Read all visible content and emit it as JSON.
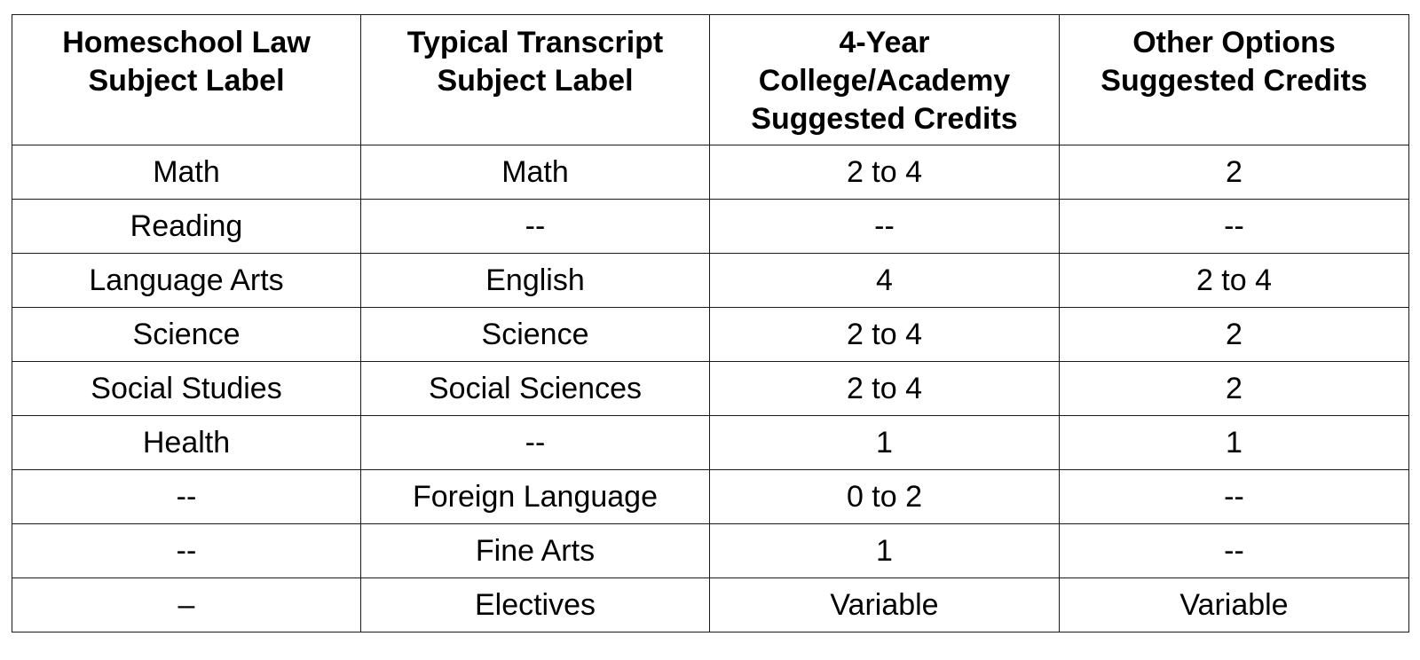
{
  "table": {
    "headers": [
      {
        "line1": "Homeschool Law",
        "line2": "Subject Label",
        "line3": ""
      },
      {
        "line1": "Typical Transcript",
        "line2": "Subject Label",
        "line3": ""
      },
      {
        "line1": "4-Year",
        "line2": "College/Academy",
        "line3": "Suggested Credits"
      },
      {
        "line1": "Other Options",
        "line2": "Suggested Credits",
        "line3": ""
      }
    ],
    "rows": [
      [
        "Math",
        "Math",
        "2 to 4",
        "2"
      ],
      [
        "Reading",
        "--",
        "--",
        "--"
      ],
      [
        "Language Arts",
        "English",
        "4",
        "2 to 4"
      ],
      [
        "Science",
        "Science",
        "2 to 4",
        "2"
      ],
      [
        "Social Studies",
        "Social Sciences",
        "2 to 4",
        "2"
      ],
      [
        "Health",
        "--",
        "1",
        "1"
      ],
      [
        "--",
        "Foreign Language",
        "0 to 2",
        "--"
      ],
      [
        "--",
        "Fine  Arts",
        "1",
        "--"
      ],
      [
        "–",
        "Electives",
        "Variable",
        "Variable"
      ]
    ]
  }
}
